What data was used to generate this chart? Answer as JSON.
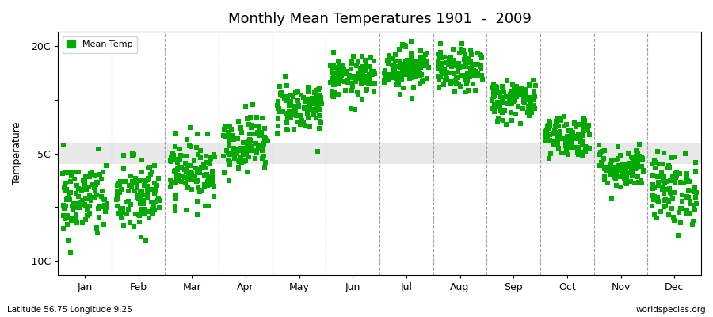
{
  "title": "Monthly Mean Temperatures 1901  -  2009",
  "ylabel": "Temperature",
  "xlabel_labels": [
    "Jan",
    "Feb",
    "Mar",
    "Apr",
    "May",
    "Jun",
    "Jul",
    "Aug",
    "Sep",
    "Oct",
    "Nov",
    "Dec"
  ],
  "ytick_labels": [
    "-10C",
    "",
    "5C",
    "",
    "20C"
  ],
  "ytick_values": [
    -10,
    -2.5,
    5,
    12.5,
    20
  ],
  "ylim": [
    -12,
    22
  ],
  "xlim": [
    0,
    12
  ],
  "background_color": "#ffffff",
  "plot_bg_color": "#ffffff",
  "band_ymin": 3.5,
  "band_ymax": 6.5,
  "band_color": "#e8e8e8",
  "dot_color": "#00aa00",
  "dot_size": 18,
  "legend_label": "Mean Temp",
  "subtitle": "Latitude 56.75 Longitude 9.25",
  "watermark": "worldspecies.org",
  "month_means": [
    -1.5,
    -1.2,
    2.5,
    6.5,
    11.5,
    15.5,
    17.0,
    16.5,
    12.5,
    7.5,
    3.0,
    0.0
  ],
  "month_stds": [
    2.8,
    2.8,
    2.2,
    2.0,
    1.8,
    1.5,
    1.5,
    1.5,
    1.5,
    1.5,
    1.5,
    2.5
  ],
  "n_years": 109,
  "seed": 42
}
